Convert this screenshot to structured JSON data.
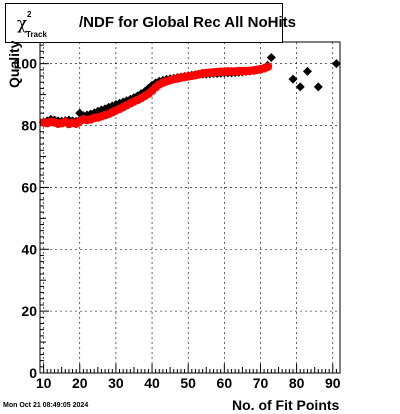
{
  "chart_data": {
    "type": "scatter",
    "title": {
      "chi": "χ",
      "superscript": "2",
      "subscript": "Track",
      "text": "/NDF for Global Rec All NoHits"
    },
    "xlabel": "No. of Fit Points",
    "ylabel": "Quality",
    "xlim": [
      9,
      92
    ],
    "ylim": [
      0,
      107
    ],
    "x_ticks": [
      10,
      20,
      30,
      40,
      50,
      60,
      70,
      80,
      90
    ],
    "y_ticks": [
      0,
      20,
      40,
      60,
      80,
      100
    ],
    "grid": true,
    "series": [
      {
        "color": "#000000",
        "marker": "diamond",
        "points": [
          [
            10,
            81.0
          ],
          [
            11,
            81.5
          ],
          [
            12,
            82.0
          ],
          [
            13,
            81.8
          ],
          [
            14,
            81.5
          ],
          [
            15,
            81.4
          ],
          [
            16,
            81.6
          ],
          [
            17,
            81.8
          ],
          [
            18,
            81.5
          ],
          [
            19,
            81.4
          ],
          [
            20,
            84.0
          ],
          [
            21,
            83.2
          ],
          [
            22,
            83.4
          ],
          [
            23,
            83.7
          ],
          [
            24,
            84.1
          ],
          [
            25,
            84.6
          ],
          [
            26,
            85.0
          ],
          [
            27,
            85.4
          ],
          [
            28,
            85.9
          ],
          [
            29,
            86.3
          ],
          [
            30,
            86.8
          ],
          [
            31,
            87.2
          ],
          [
            32,
            87.6
          ],
          [
            33,
            88.0
          ],
          [
            34,
            88.5
          ],
          [
            35,
            89.0
          ],
          [
            36,
            89.6
          ],
          [
            37,
            90.3
          ],
          [
            38,
            91.0
          ],
          [
            39,
            92.0
          ],
          [
            40,
            93.0
          ],
          [
            41,
            93.8
          ],
          [
            42,
            94.3
          ],
          [
            43,
            94.6
          ],
          [
            44,
            94.9
          ],
          [
            45,
            95.1
          ],
          [
            46,
            95.3
          ],
          [
            47,
            95.5
          ],
          [
            48,
            95.7
          ],
          [
            49,
            95.9
          ],
          [
            50,
            96.1
          ],
          [
            51,
            96.3
          ],
          [
            52,
            96.4
          ],
          [
            53,
            96.5
          ],
          [
            54,
            96.6
          ],
          [
            55,
            96.6
          ],
          [
            56,
            96.7
          ],
          [
            57,
            96.8
          ],
          [
            58,
            96.8
          ],
          [
            59,
            96.9
          ],
          [
            60,
            97.0
          ],
          [
            61,
            97.0
          ],
          [
            62,
            97.0
          ],
          [
            63,
            97.1
          ],
          [
            64,
            97.2
          ],
          [
            65,
            97.3
          ],
          [
            66,
            97.5
          ],
          [
            67,
            97.6
          ],
          [
            68,
            97.8
          ],
          [
            69,
            98.0
          ],
          [
            70,
            98.2
          ],
          [
            71,
            98.6
          ],
          [
            72,
            99.5
          ],
          [
            73,
            102.0
          ],
          [
            79,
            95.0
          ],
          [
            81,
            92.5
          ],
          [
            83,
            97.5
          ],
          [
            86,
            92.5
          ],
          [
            91,
            100.0
          ]
        ]
      },
      {
        "color": "#ff0000",
        "marker": "circle",
        "points": [
          [
            10,
            81.0
          ],
          [
            11,
            80.8
          ],
          [
            12,
            81.2
          ],
          [
            13,
            81.0
          ],
          [
            14,
            80.6
          ],
          [
            15,
            80.8
          ],
          [
            16,
            81.2
          ],
          [
            17,
            80.5
          ],
          [
            18,
            80.9
          ],
          [
            19,
            80.6
          ],
          [
            20,
            81.5
          ],
          [
            21,
            82.0
          ],
          [
            22,
            81.8
          ],
          [
            23,
            82.0
          ],
          [
            24,
            82.5
          ],
          [
            25,
            82.6
          ],
          [
            26,
            83.0
          ],
          [
            27,
            83.4
          ],
          [
            28,
            83.8
          ],
          [
            29,
            84.3
          ],
          [
            30,
            84.9
          ],
          [
            31,
            85.4
          ],
          [
            32,
            86.0
          ],
          [
            33,
            86.6
          ],
          [
            34,
            87.2
          ],
          [
            35,
            87.8
          ],
          [
            36,
            88.3
          ],
          [
            37,
            88.9
          ],
          [
            38,
            89.6
          ],
          [
            39,
            90.3
          ],
          [
            40,
            91.3
          ],
          [
            41,
            92.4
          ],
          [
            42,
            93.3
          ],
          [
            43,
            93.9
          ],
          [
            44,
            94.3
          ],
          [
            45,
            94.7
          ],
          [
            46,
            95.0
          ],
          [
            47,
            95.2
          ],
          [
            48,
            95.5
          ],
          [
            49,
            95.7
          ],
          [
            50,
            95.9
          ],
          [
            51,
            96.1
          ],
          [
            52,
            96.3
          ],
          [
            53,
            96.6
          ],
          [
            54,
            96.9
          ],
          [
            55,
            97.0
          ],
          [
            56,
            97.1
          ],
          [
            57,
            97.2
          ],
          [
            58,
            97.3
          ],
          [
            59,
            97.4
          ],
          [
            60,
            97.4
          ],
          [
            61,
            97.5
          ],
          [
            62,
            97.5
          ],
          [
            63,
            97.5
          ],
          [
            64,
            97.6
          ],
          [
            65,
            97.6
          ],
          [
            66,
            97.6
          ],
          [
            67,
            97.7
          ],
          [
            68,
            97.8
          ],
          [
            69,
            98.0
          ],
          [
            70,
            98.2
          ],
          [
            71,
            98.5
          ],
          [
            72,
            99.0
          ]
        ]
      }
    ]
  },
  "footer": {
    "timestamp": "Mon Oct 21 08:49:05 2024"
  }
}
